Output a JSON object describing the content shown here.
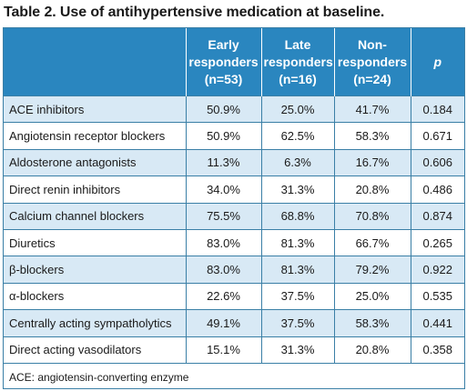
{
  "title": "Table 2. Use of antihypertensive medication at baseline.",
  "header": {
    "col1": [
      "Early",
      "responders",
      "(n=53)"
    ],
    "col2": [
      "Late",
      "responders",
      "(n=16)"
    ],
    "col3": [
      "Non-",
      "responders",
      "(n=24)"
    ],
    "col4": "p"
  },
  "rows": [
    {
      "label": "ACE inhibitors",
      "early": "50.9%",
      "late": "25.0%",
      "non": "41.7%",
      "p": "0.184"
    },
    {
      "label": "Angiotensin receptor blockers",
      "early": "50.9%",
      "late": "62.5%",
      "non": "58.3%",
      "p": "0.671"
    },
    {
      "label": "Aldosterone antagonists",
      "early": "11.3%",
      "late": "6.3%",
      "non": "16.7%",
      "p": "0.606"
    },
    {
      "label": "Direct renin inhibitors",
      "early": "34.0%",
      "late": "31.3%",
      "non": "20.8%",
      "p": "0.486"
    },
    {
      "label": "Calcium channel blockers",
      "early": "75.5%",
      "late": "68.8%",
      "non": "70.8%",
      "p": "0.874"
    },
    {
      "label": "Diuretics",
      "early": "83.0%",
      "late": "81.3%",
      "non": "66.7%",
      "p": "0.265"
    },
    {
      "label": "β-blockers",
      "early": "83.0%",
      "late": "81.3%",
      "non": "79.2%",
      "p": "0.922"
    },
    {
      "label": "α-blockers",
      "early": "22.6%",
      "late": "37.5%",
      "non": "25.0%",
      "p": "0.535"
    },
    {
      "label": "Centrally acting sympatholytics",
      "early": "49.1%",
      "late": "37.5%",
      "non": "58.3%",
      "p": "0.441"
    },
    {
      "label": "Direct acting vasodilators",
      "early": "15.1%",
      "late": "31.3%",
      "non": "20.8%",
      "p": "0.358"
    }
  ],
  "footnote": "ACE: angiotensin-converting enzyme"
}
